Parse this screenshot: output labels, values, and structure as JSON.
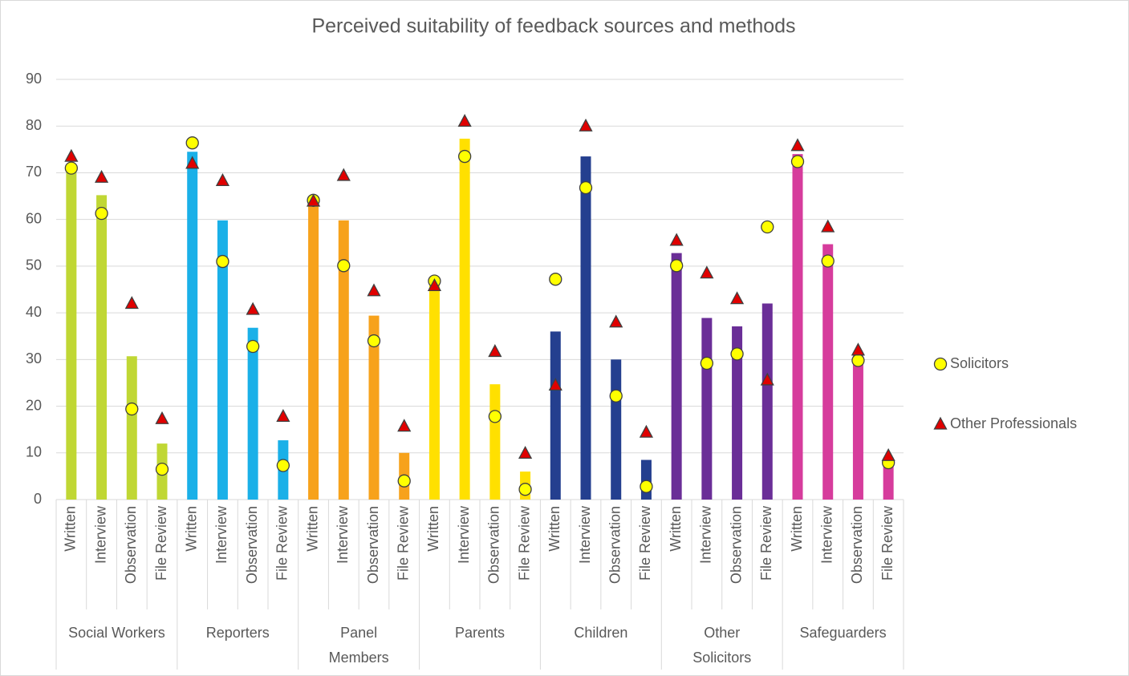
{
  "chart_data": {
    "type": "bar",
    "title": "Perceived suitability of feedback sources and methods",
    "categories": [
      "Written",
      "Interview",
      "Observation",
      "File Review",
      "Written",
      "Interview",
      "Observation",
      "File Review",
      "Written",
      "Interview",
      "Observation",
      "File Review",
      "Written",
      "Interview",
      "Observation",
      "File Review",
      "Written",
      "Interview",
      "Observation",
      "File Review",
      "Written",
      "Interview",
      "Observation",
      "File Review",
      "Written",
      "Interview",
      "Observation",
      "File Review"
    ],
    "groups": [
      {
        "label": [
          "Social Workers"
        ],
        "color": "#c0d734"
      },
      {
        "label": [
          "Reporters"
        ],
        "color": "#1ab0e8"
      },
      {
        "label": [
          "Panel",
          "Members"
        ],
        "color": "#f7a21b"
      },
      {
        "label": [
          "Parents"
        ],
        "color": "#ffe000"
      },
      {
        "label": [
          "Children"
        ],
        "color": "#243f8f"
      },
      {
        "label": [
          "Other",
          "Solicitors"
        ],
        "color": "#6a2e97"
      },
      {
        "label": [
          "Safeguarders"
        ],
        "color": "#d63c9c"
      }
    ],
    "series": [
      {
        "values": [
          71,
          65.2,
          30.7,
          12,
          74.5,
          59.8,
          36.8,
          12.7,
          64,
          59.8,
          39.4,
          10,
          46,
          77.3,
          24.7,
          6,
          36,
          73.5,
          30,
          8.5,
          52.8,
          38.9,
          37.1,
          42,
          74,
          54.7,
          31.5,
          9
        ]
      },
      {
        "name": "Solicitors",
        "color": "#ffff00",
        "marker": "circle",
        "values": [
          71,
          61.3,
          19.4,
          6.5,
          76.4,
          51,
          32.8,
          7.3,
          64.1,
          50.1,
          34,
          4,
          46.8,
          73.5,
          17.8,
          2.2,
          47.2,
          66.8,
          22.2,
          2.8,
          50.1,
          29.2,
          31.2,
          58.4,
          72.4,
          51.1,
          29.8,
          7.9
        ]
      },
      {
        "name": "Other Professionals",
        "color": "#e00000",
        "marker": "triangle",
        "values": [
          73.5,
          69,
          42,
          17.3,
          72,
          68.3,
          40.7,
          17.8,
          63.9,
          69.4,
          44.7,
          15.7,
          45.8,
          81,
          31.7,
          9.9,
          24.5,
          80,
          38,
          14.4,
          55.5,
          48.5,
          43,
          25.6,
          75.8,
          58.4,
          32,
          9.4
        ]
      }
    ],
    "ylim": [
      0,
      90
    ],
    "yticks": [
      0,
      10,
      20,
      30,
      40,
      50,
      60,
      70,
      80,
      90
    ],
    "grid": true,
    "legend": "right"
  }
}
